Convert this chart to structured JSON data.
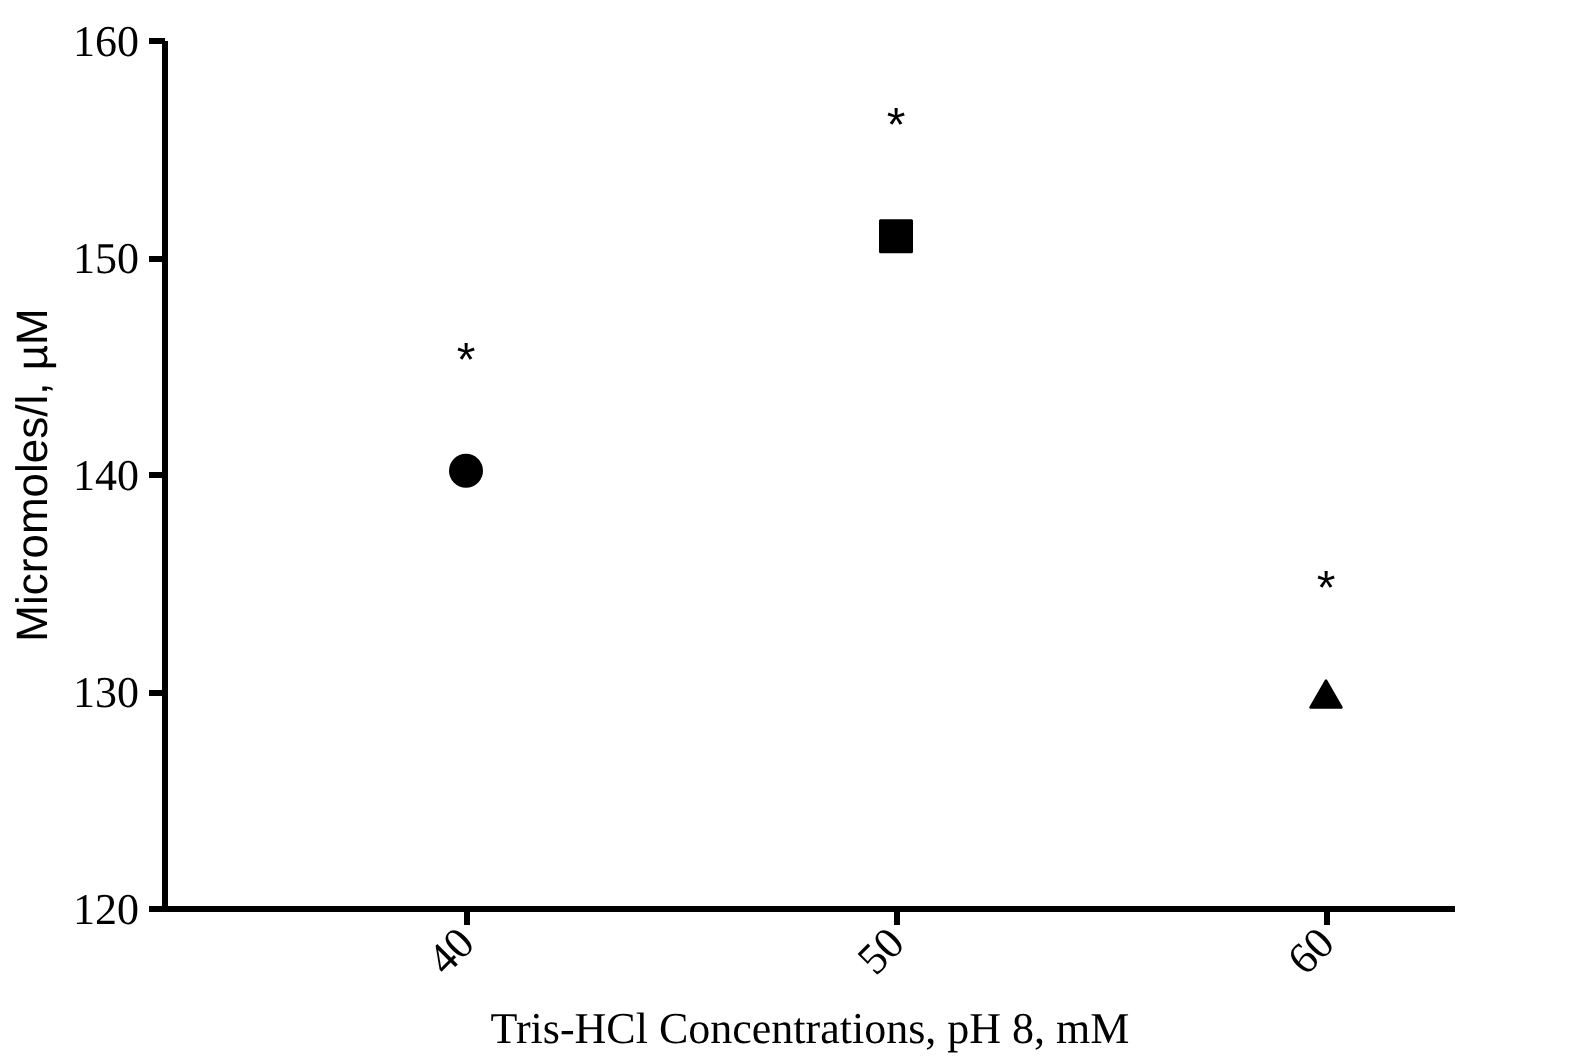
{
  "chart_data": {
    "type": "scatter",
    "xlabel": "Tris-HCl Concentrations, pH 8, mM",
    "ylabel": "Micromoles/l, µM",
    "categories": [
      "40",
      "50",
      "60"
    ],
    "series": [
      {
        "color": "#000000",
        "x": [
          "40"
        ],
        "values": [
          140.2
        ],
        "marker": "circle"
      },
      {
        "color": "#000000",
        "x": [
          "50"
        ],
        "values": [
          151.0
        ],
        "marker": "square"
      },
      {
        "color": "#000000",
        "x": [
          "60"
        ],
        "values": [
          129.7
        ],
        "marker": "triangle"
      }
    ],
    "ylim": [
      120,
      160
    ],
    "yticks": [
      120,
      130,
      140,
      150,
      160
    ],
    "grid": false,
    "annotations": [
      "*",
      "*",
      "*"
    ]
  }
}
